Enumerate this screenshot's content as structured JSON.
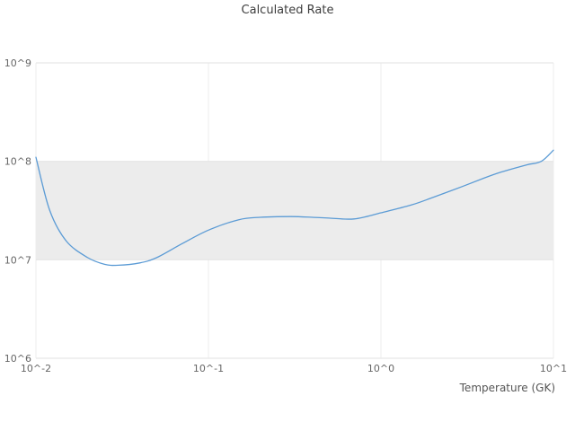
{
  "chart_data": {
    "type": "line",
    "title": "Calculated Rate",
    "xlabel": "Temperature (GK)",
    "ylabel": "",
    "x_scale": "log",
    "y_scale": "log",
    "xlim": [
      0.01,
      10
    ],
    "ylim": [
      1000000.0,
      1000000000.0
    ],
    "grid": true,
    "legend": false,
    "line_color": "#5b9bd5",
    "x_ticks": {
      "values": [
        0.01,
        0.1,
        1,
        10
      ],
      "labels": [
        "10^-2",
        "10^-1",
        "10^0",
        "10^1"
      ]
    },
    "y_ticks": {
      "values": [
        1000000.0,
        10000000.0,
        100000000.0,
        1000000000.0
      ],
      "labels": [
        "10^6",
        "10^7",
        "10^8",
        "10^9"
      ]
    },
    "shaded_band": {
      "y0": 10000000.0,
      "y1": 100000000.0,
      "color": "#ececec"
    },
    "x": [
      0.01,
      0.012,
      0.015,
      0.02,
      0.025,
      0.03,
      0.04,
      0.05,
      0.07,
      0.1,
      0.15,
      0.2,
      0.3,
      0.4,
      0.5,
      0.7,
      1.0,
      1.5,
      2.0,
      3.0,
      4.0,
      5.0,
      7.0,
      8.5,
      10.0
    ],
    "y": [
      110000000.0,
      32000000.0,
      15500000.0,
      10500000.0,
      9000000.0,
      8800000.0,
      9300000.0,
      10500000.0,
      14500000.0,
      20000000.0,
      25500000.0,
      27000000.0,
      27500000.0,
      27000000.0,
      26500000.0,
      26000000.0,
      30000000.0,
      36000000.0,
      43000000.0,
      56000000.0,
      68000000.0,
      78000000.0,
      92000000.0,
      100000000.0,
      130000000.0
    ]
  }
}
